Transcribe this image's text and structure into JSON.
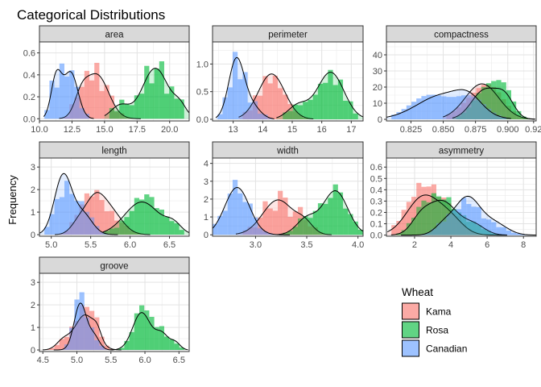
{
  "chart_data": {
    "type": "faceted-histogram-density",
    "title": "Categorical Distributions",
    "ylabel": "Frequency",
    "legend": {
      "title": "Wheat",
      "position": "bottom-right",
      "entries": [
        {
          "name": "Kama",
          "color": "#F8766D"
        },
        {
          "name": "Rosa",
          "color": "#00BA38"
        },
        {
          "name": "Canadian",
          "color": "#619CFF"
        }
      ]
    },
    "grid": true,
    "facets": [
      {
        "name": "area",
        "xlim": [
          10.0,
          21.5
        ],
        "ylim": [
          -0.02,
          0.7
        ],
        "xticks": [
          10.0,
          12.5,
          15.0,
          17.5,
          20.0
        ],
        "xtick_labels": [
          "10.0",
          "12.5",
          "15.0",
          "17.5",
          "20.0"
        ],
        "yticks": [
          0.0,
          0.2,
          0.4,
          0.6
        ],
        "ytick_labels": [
          "0.0",
          "0.2",
          "0.4",
          "0.6"
        ],
        "series": [
          {
            "name": "Kama",
            "peaks": [
              [
                14.4,
                0.4,
                0.9
              ],
              [
                13.2,
                0.15,
                0.5
              ]
            ],
            "range": [
              11.8,
              17.5
            ]
          },
          {
            "name": "Rosa",
            "peaks": [
              [
                18.9,
                0.46,
                1.0
              ],
              [
                16.2,
                0.12,
                0.7
              ],
              [
                20.8,
                0.1,
                0.5
              ]
            ],
            "range": [
              15.3,
              21.3
            ]
          },
          {
            "name": "Canadian",
            "peaks": [
              [
                11.3,
                0.38,
                0.4
              ],
              [
                12.4,
                0.42,
                0.55
              ]
            ],
            "range": [
              10.5,
              14.0
            ]
          }
        ]
      },
      {
        "name": "perimeter",
        "xlim": [
          12.3,
          17.4
        ],
        "ylim": [
          -0.03,
          1.4
        ],
        "xticks": [
          13,
          14,
          15,
          16,
          17
        ],
        "xtick_labels": [
          "13",
          "14",
          "15",
          "16",
          "17"
        ],
        "yticks": [
          0.0,
          0.5,
          1.0
        ],
        "ytick_labels": [
          "0.0",
          "0.5",
          "1.0"
        ],
        "series": [
          {
            "name": "Kama",
            "peaks": [
              [
                14.3,
                0.82,
                0.45
              ]
            ],
            "range": [
              13.3,
              15.6
            ]
          },
          {
            "name": "Rosa",
            "peaks": [
              [
                16.3,
                0.85,
                0.45
              ],
              [
                15.2,
                0.25,
                0.35
              ]
            ],
            "range": [
              14.6,
              17.3
            ]
          },
          {
            "name": "Canadian",
            "peaks": [
              [
                13.1,
                1.05,
                0.26
              ],
              [
                13.6,
                0.25,
                0.3
              ]
            ],
            "range": [
              12.5,
              14.3
            ]
          }
        ]
      },
      {
        "name": "compactness",
        "xlim": [
          0.806,
          0.922
        ],
        "ylim": [
          -1,
          48
        ],
        "xticks": [
          0.825,
          0.85,
          0.875,
          0.9,
          0.92
        ],
        "xtick_labels": [
          "0.825",
          "0.850",
          "0.875",
          "0.900",
          "0.92"
        ],
        "yticks": [
          0,
          10,
          20,
          30,
          40
        ],
        "ytick_labels": [
          "0",
          "10",
          "20",
          "30",
          "40"
        ],
        "series": [
          {
            "name": "Kama",
            "peaks": [
              [
                0.88,
                22,
                0.013
              ]
            ],
            "range": [
              0.853,
              0.918
            ]
          },
          {
            "name": "Rosa",
            "peaks": [
              [
                0.882,
                18,
                0.01
              ],
              [
                0.898,
                12,
                0.007
              ]
            ],
            "range": [
              0.86,
              0.918
            ]
          },
          {
            "name": "Canadian",
            "peaks": [
              [
                0.85,
                15,
                0.02
              ],
              [
                0.87,
                8,
                0.01
              ]
            ],
            "range": [
              0.808,
              0.898
            ]
          }
        ]
      },
      {
        "name": "length",
        "xlim": [
          4.85,
          6.75
        ],
        "ylim": [
          -0.07,
          3.4
        ],
        "xticks": [
          5.0,
          5.5,
          6.0,
          6.5
        ],
        "xtick_labels": [
          "5.0",
          "5.5",
          "6.0",
          "6.5"
        ],
        "yticks": [
          0,
          1,
          2,
          3
        ],
        "ytick_labels": [
          "0",
          "1",
          "2",
          "3"
        ],
        "series": [
          {
            "name": "Kama",
            "peaks": [
              [
                5.55,
                1.35,
                0.12
              ],
              [
                5.75,
                1.0,
                0.15
              ],
              [
                5.35,
                0.5,
                0.1
              ]
            ],
            "range": [
              5.1,
              6.2
            ]
          },
          {
            "name": "Rosa",
            "peaks": [
              [
                6.15,
                1.45,
                0.22
              ],
              [
                6.55,
                0.4,
                0.1
              ]
            ],
            "range": [
              5.7,
              6.7
            ]
          },
          {
            "name": "Canadian",
            "peaks": [
              [
                5.15,
                2.6,
                0.11
              ],
              [
                5.4,
                0.9,
                0.12
              ]
            ],
            "range": [
              4.9,
              5.8
            ]
          }
        ]
      },
      {
        "name": "width",
        "xlim": [
          2.58,
          4.05
        ],
        "ylim": [
          -0.08,
          4.3
        ],
        "xticks": [
          3.0,
          3.5,
          4.0
        ],
        "xtick_labels": [
          "3.0",
          "3.5",
          "4.0"
        ],
        "yticks": [
          0,
          1,
          2,
          3,
          4
        ],
        "ytick_labels": [
          "0",
          "1",
          "2",
          "3",
          "4"
        ],
        "series": [
          {
            "name": "Kama",
            "peaks": [
              [
                3.22,
                1.95,
                0.15
              ],
              [
                3.48,
                0.55,
                0.08
              ]
            ],
            "range": [
              2.85,
              3.7
            ]
          },
          {
            "name": "Rosa",
            "peaks": [
              [
                3.78,
                2.45,
                0.12
              ],
              [
                3.5,
                0.9,
                0.1
              ]
            ],
            "range": [
              3.25,
              4.03
            ]
          },
          {
            "name": "Canadian",
            "peaks": [
              [
                2.82,
                2.65,
                0.12
              ]
            ],
            "range": [
              2.6,
              3.3
            ]
          }
        ]
      },
      {
        "name": "asymmetry",
        "xlim": [
          0.45,
          8.7
        ],
        "ylim": [
          -0.01,
          0.68
        ],
        "xticks": [
          2,
          4,
          6,
          8
        ],
        "xtick_labels": [
          "2",
          "4",
          "6",
          "8"
        ],
        "yticks": [
          0.0,
          0.1,
          0.2,
          0.3,
          0.4,
          0.5,
          0.6
        ],
        "ytick_labels": [
          "0.0",
          "0.1",
          "0.2",
          "0.3",
          "0.4",
          "0.5",
          "0.6"
        ],
        "series": [
          {
            "name": "Kama",
            "peaks": [
              [
                2.5,
                0.34,
                0.9
              ],
              [
                4.0,
                0.12,
                0.7
              ]
            ],
            "range": [
              0.8,
              6.8
            ]
          },
          {
            "name": "Rosa",
            "peaks": [
              [
                3.5,
                0.3,
                0.85
              ],
              [
                2.3,
                0.1,
                0.5
              ],
              [
                5.3,
                0.08,
                0.6
              ]
            ],
            "range": [
              1.0,
              6.8
            ]
          },
          {
            "name": "Canadian",
            "peaks": [
              [
                4.9,
                0.33,
                0.7
              ],
              [
                6.4,
                0.1,
                0.7
              ],
              [
                3.6,
                0.08,
                0.5
              ]
            ],
            "range": [
              1.6,
              8.5
            ]
          }
        ]
      },
      {
        "name": "groove",
        "xlim": [
          4.45,
          6.65
        ],
        "ylim": [
          -0.07,
          3.4
        ],
        "xticks": [
          4.5,
          5.0,
          5.5,
          6.0,
          6.5
        ],
        "xtick_labels": [
          "4.5",
          "5.0",
          "5.5",
          "6.0",
          "6.5"
        ],
        "yticks": [
          0,
          1,
          2,
          3
        ],
        "ytick_labels": [
          "0",
          "1",
          "2",
          "3"
        ],
        "series": [
          {
            "name": "Kama",
            "peaks": [
              [
                5.12,
                1.55,
                0.15
              ],
              [
                4.8,
                0.4,
                0.1
              ],
              [
                5.3,
                0.4,
                0.06
              ]
            ],
            "range": [
              4.55,
              5.6
            ]
          },
          {
            "name": "Rosa",
            "peaks": [
              [
                5.95,
                1.65,
                0.13
              ],
              [
                6.25,
                0.7,
                0.1
              ],
              [
                6.45,
                0.3,
                0.07
              ]
            ],
            "range": [
              5.55,
              6.58
            ]
          },
          {
            "name": "Canadian",
            "peaks": [
              [
                5.05,
                2.05,
                0.09
              ],
              [
                5.25,
                0.6,
                0.08
              ]
            ],
            "range": [
              4.7,
              5.5
            ]
          }
        ]
      }
    ]
  }
}
